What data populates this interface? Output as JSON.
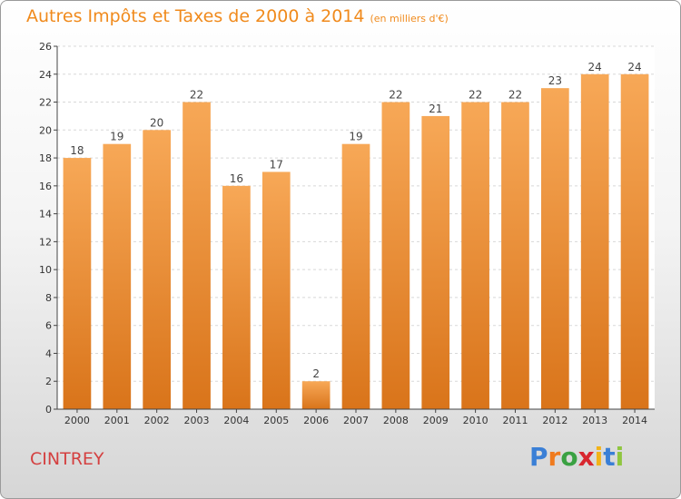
{
  "title": "Autres Impôts et Taxes de 2000 à 2014",
  "unit_note": "(en milliers d'€)",
  "location": "CINTREY",
  "brand": {
    "letters": [
      "P",
      "r",
      "o",
      "x",
      "i",
      "t",
      "i"
    ],
    "colors": [
      "#3a7fd6",
      "#f07b1e",
      "#3aa142",
      "#d8262e",
      "#f2b318",
      "#3a7fd6",
      "#8fc63f"
    ]
  },
  "colors": {
    "bar_light": "#f7a857",
    "bar_dark": "#d9741a",
    "title": "#f08a1c",
    "location": "#d44040"
  },
  "chart_data": {
    "type": "bar",
    "title": "Autres Impôts et Taxes de 2000 à 2014",
    "categories": [
      "2000",
      "2001",
      "2002",
      "2003",
      "2004",
      "2005",
      "2006",
      "2007",
      "2008",
      "2009",
      "2010",
      "2011",
      "2012",
      "2013",
      "2014"
    ],
    "values": [
      18,
      19,
      20,
      22,
      16,
      17,
      2,
      19,
      22,
      21,
      22,
      22,
      23,
      24,
      24
    ],
    "ylim": [
      0,
      26
    ],
    "yticks": [
      0,
      2,
      4,
      6,
      8,
      10,
      12,
      14,
      16,
      18,
      20,
      22,
      24,
      26
    ],
    "grid": true
  }
}
